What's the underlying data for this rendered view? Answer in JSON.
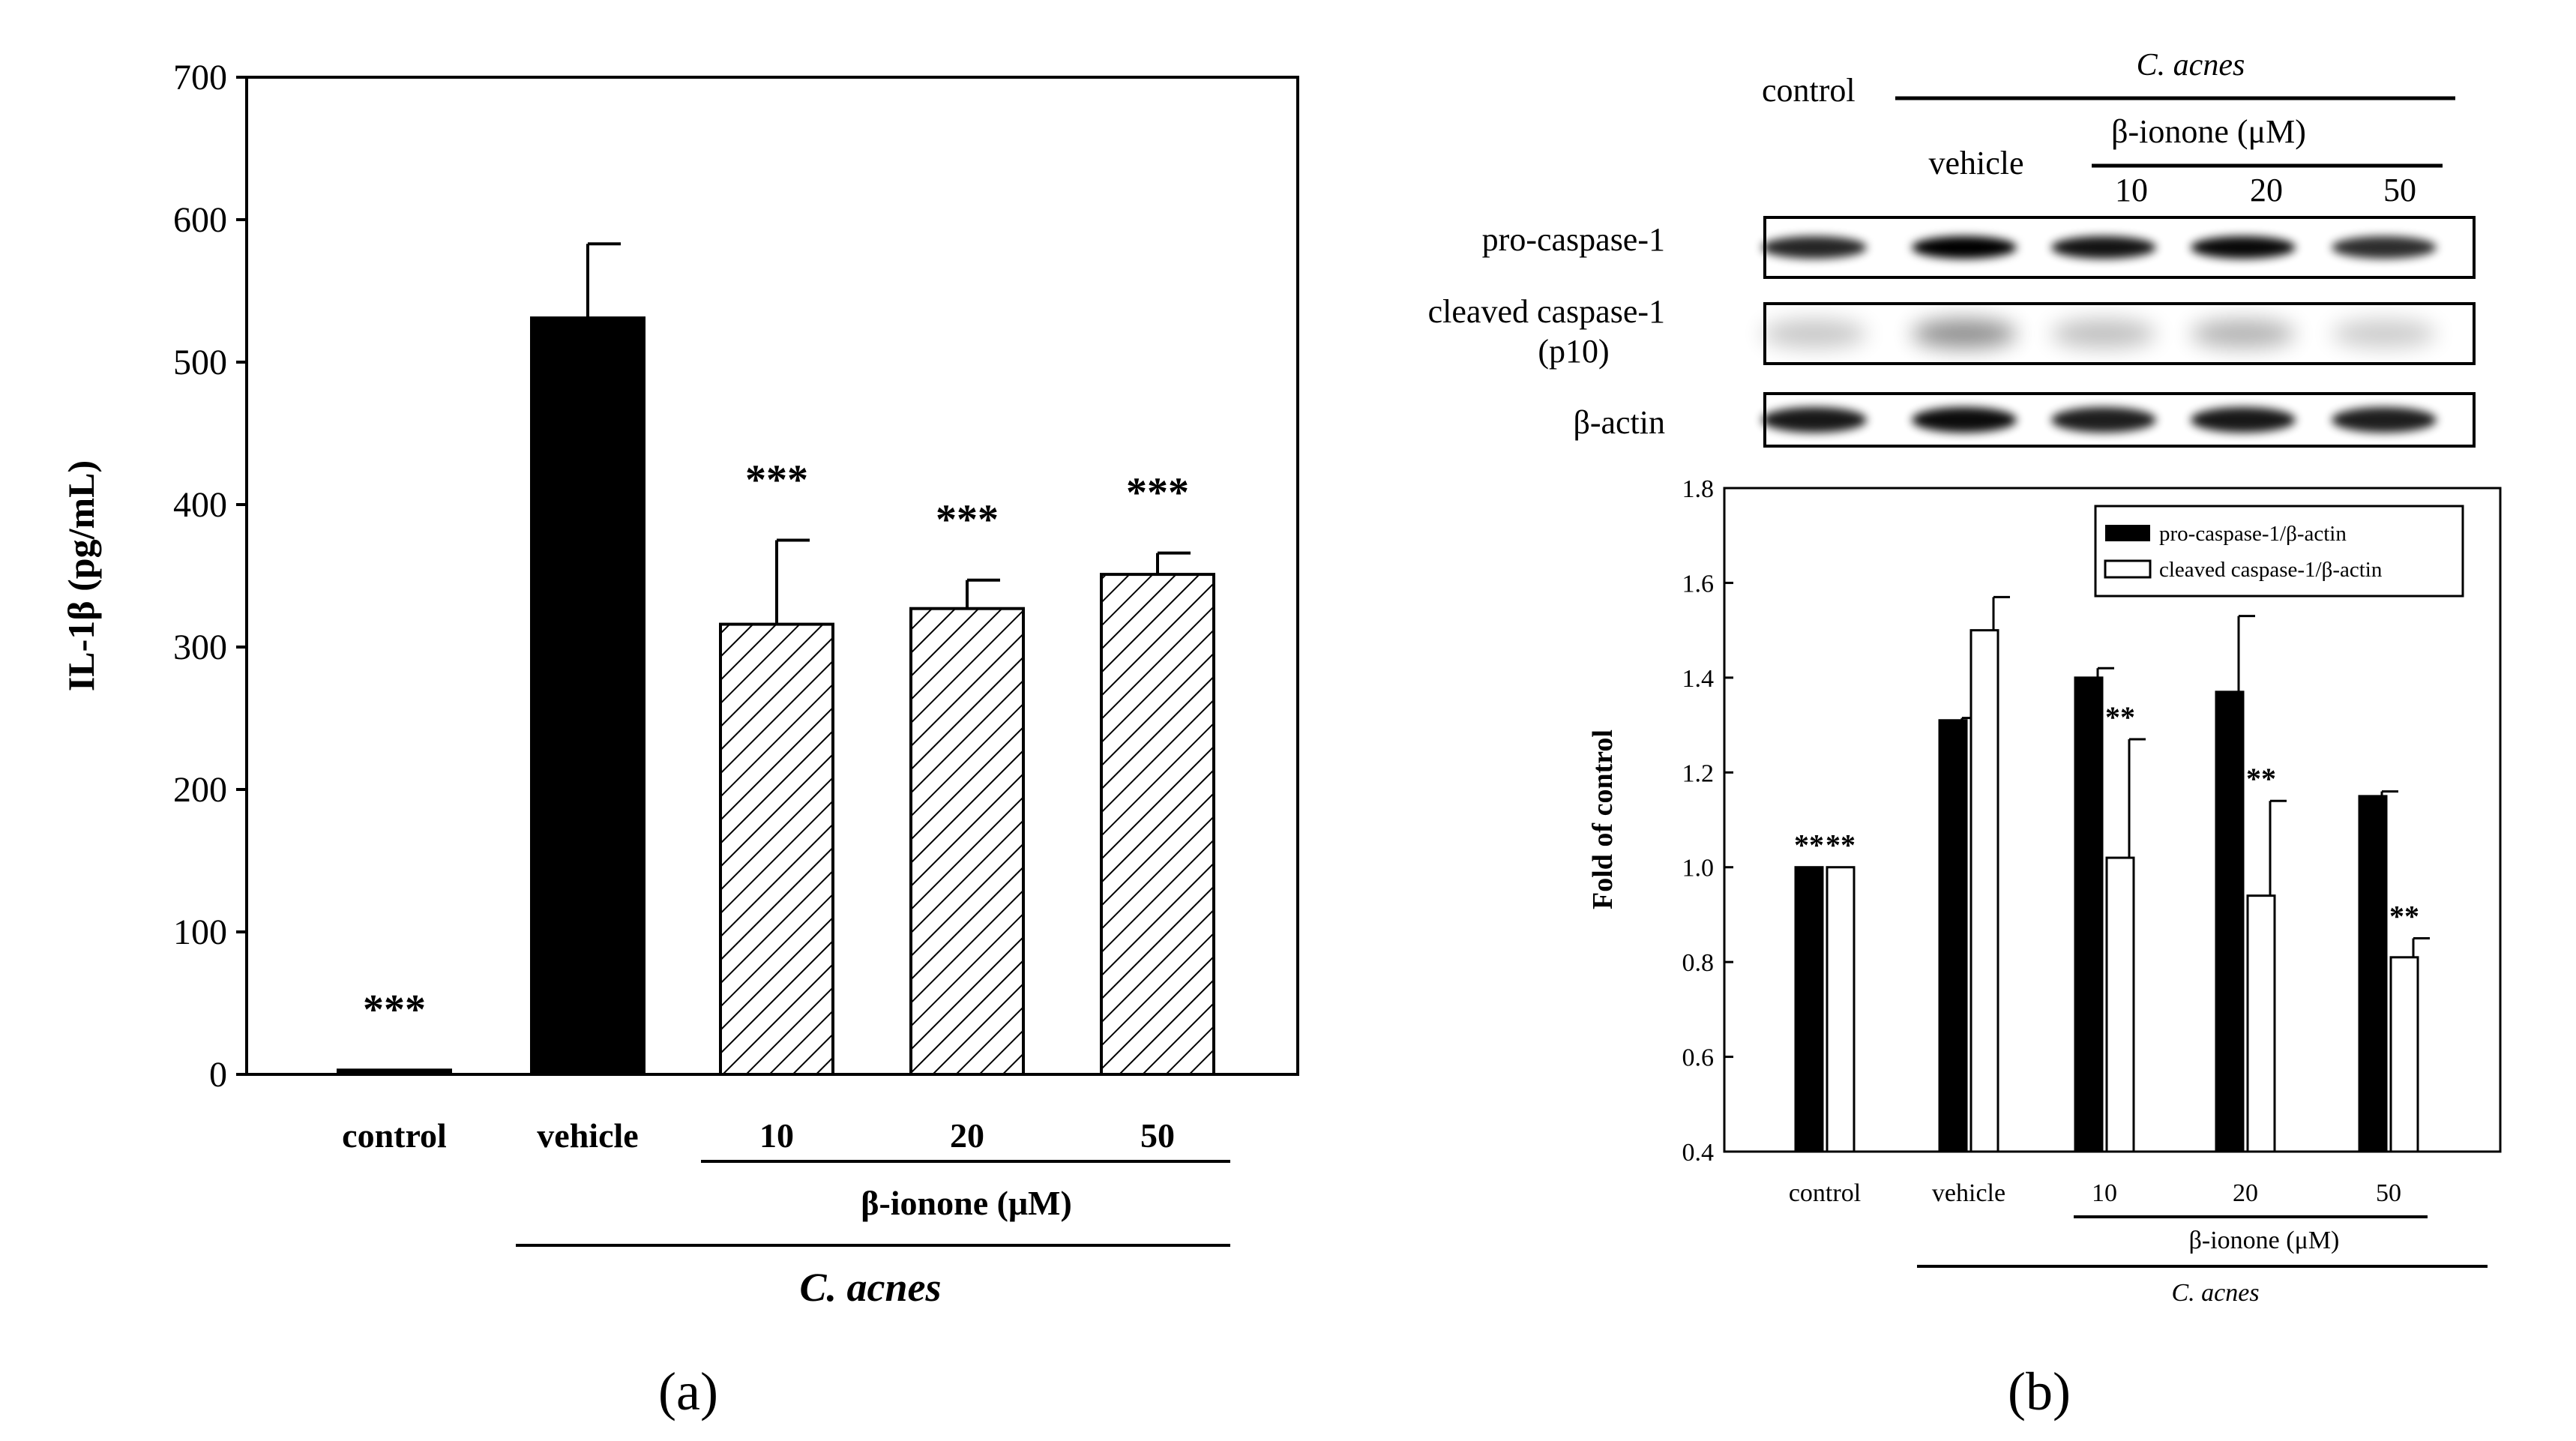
{
  "panel_a": {
    "caption": "(a)",
    "chart_data": {
      "type": "bar",
      "ylabel": "IL-1β (pg/mL)",
      "ylim": [
        0,
        700
      ],
      "yticks": [
        0,
        100,
        200,
        300,
        400,
        500,
        600,
        700
      ],
      "categories": [
        "control",
        "vehicle",
        "10",
        "20",
        "50"
      ],
      "values": [
        3,
        531,
        316,
        327,
        351
      ],
      "errors": [
        0,
        52,
        59,
        20,
        15
      ],
      "fills": [
        "solid",
        "solid",
        "hatched",
        "hatched",
        "hatched"
      ],
      "significance": [
        "***",
        "",
        "***",
        "***",
        "***"
      ],
      "group_labels": {
        "ionone": "β-ionone (μM)",
        "acnes": "C. acnes"
      }
    }
  },
  "panel_b": {
    "caption": "(b)",
    "blot": {
      "header_control": "control",
      "header_acnes": "C. acnes",
      "header_vehicle": "vehicle",
      "header_ionone": "β-ionone (μM)",
      "doses": [
        "10",
        "20",
        "50"
      ],
      "rows": [
        {
          "label": "pro-caspase-1",
          "intensities": [
            0.85,
            1.0,
            0.92,
            0.96,
            0.82
          ]
        },
        {
          "label": "cleaved caspase-1",
          "label2": "(p10)",
          "intensities": [
            0.22,
            0.45,
            0.25,
            0.3,
            0.2
          ]
        },
        {
          "label": "β-actin",
          "intensities": [
            0.9,
            0.95,
            0.88,
            0.9,
            0.88
          ]
        }
      ]
    },
    "chart_data": {
      "type": "bar",
      "ylabel": "Fold of control",
      "ylim": [
        0.4,
        1.8
      ],
      "yticks": [
        "0.4",
        "0.6",
        "0.8",
        "1.0",
        "1.2",
        "1.4",
        "1.6",
        "1.8"
      ],
      "categories": [
        "control",
        "vehicle",
        "10",
        "20",
        "50"
      ],
      "series": [
        {
          "name": "pro-caspase-1/β-actin",
          "fill": "#000000",
          "values": [
            1.0,
            1.31,
            1.4,
            1.37,
            1.15
          ],
          "errors": [
            0,
            0.005,
            0.02,
            0.16,
            0.01
          ],
          "significance": [
            "**",
            "",
            "",
            "",
            ""
          ]
        },
        {
          "name": "cleaved caspase-1/β-actin",
          "fill": "#ffffff",
          "values": [
            1.0,
            1.5,
            1.02,
            0.94,
            0.81
          ],
          "errors": [
            0,
            0.07,
            0.25,
            0.2,
            0.04
          ],
          "significance": [
            "**",
            "",
            "**",
            "**",
            "**"
          ]
        }
      ],
      "legend_position": "top-right",
      "group_labels": {
        "ionone": "β-ionone (μM)",
        "acnes": "C. acnes"
      }
    }
  }
}
